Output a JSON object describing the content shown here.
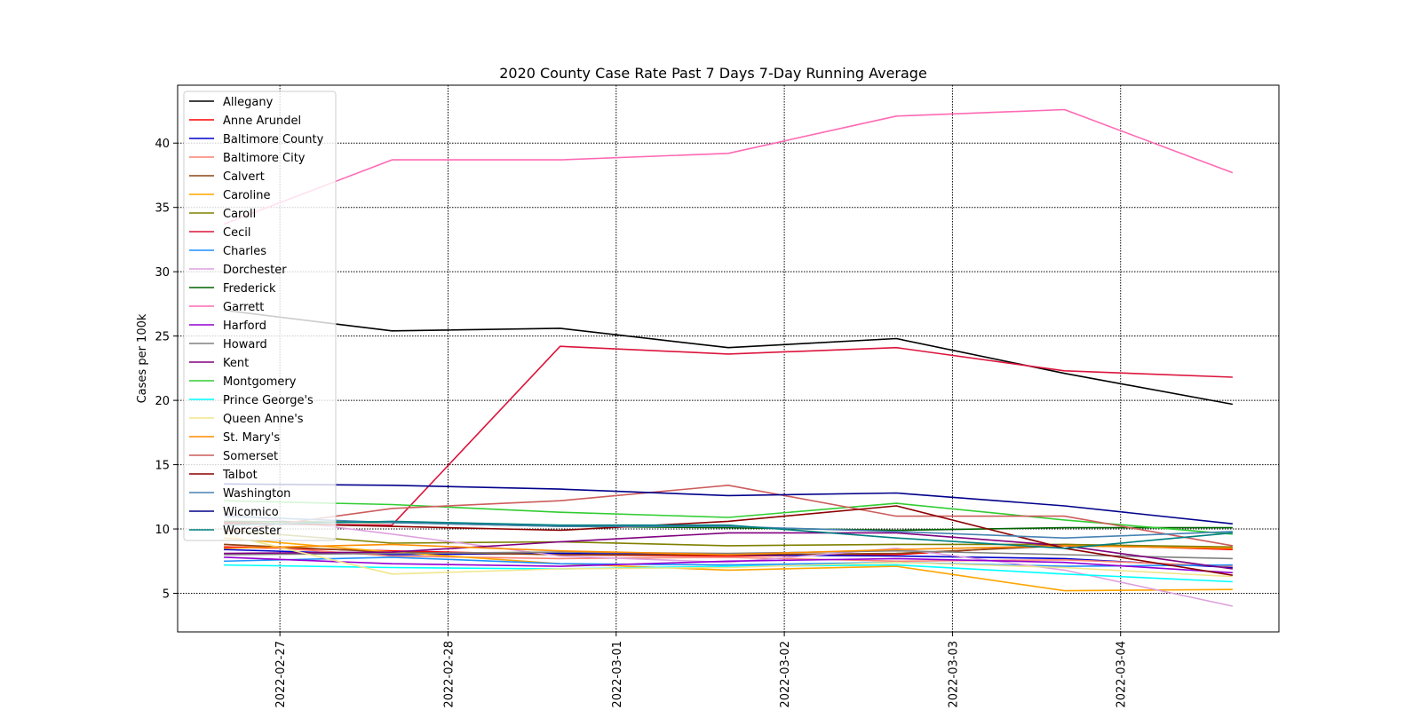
{
  "chart_data": {
    "type": "line",
    "title": "2020 County Case Rate  Past 7 Days 7-Day Running Average",
    "xlabel": "",
    "ylabel": "Cases per 100k",
    "x": [
      "2022-02-26 16:00",
      "2022-02-27 16:00",
      "2022-02-28 16:00",
      "2022-03-01 16:00",
      "2022-03-02 16:00",
      "2022-03-03 16:00",
      "2022-03-04 16:00"
    ],
    "x_ticks": [
      "2022-02-27",
      "2022-02-28",
      "2022-03-01",
      "2022-03-02",
      "2022-03-03",
      "2022-03-04"
    ],
    "xlim": [
      "2022-02-26 09:24",
      "2022-03-04 22:36"
    ],
    "y_ticks": [
      5,
      10,
      15,
      20,
      25,
      30,
      35,
      40
    ],
    "ylim": [
      2.0,
      44.5
    ],
    "grid": true,
    "legend_position": "upper-left",
    "series": [
      {
        "name": "Allegany",
        "color": "#000000",
        "values": [
          27.0,
          25.4,
          25.6,
          24.1,
          24.8,
          22.1,
          19.7
        ]
      },
      {
        "name": "Anne Arundel",
        "color": "#ff0000",
        "values": [
          8.6,
          8.3,
          8.0,
          7.9,
          8.0,
          8.8,
          8.4
        ]
      },
      {
        "name": "Baltimore County",
        "color": "#0000cd",
        "values": [
          8.4,
          8.0,
          8.1,
          8.0,
          7.9,
          7.7,
          7.0
        ]
      },
      {
        "name": "Baltimore City",
        "color": "#fa8072",
        "values": [
          8.8,
          7.9,
          7.7,
          7.8,
          7.5,
          7.6,
          7.1
        ]
      },
      {
        "name": "Calvert",
        "color": "#8b4513",
        "values": [
          8.8,
          8.2,
          8.0,
          8.0,
          8.1,
          8.7,
          8.5
        ]
      },
      {
        "name": "Caroline",
        "color": "#ffa500",
        "values": [
          9.3,
          8.2,
          7.3,
          6.8,
          7.1,
          5.2,
          5.3
        ]
      },
      {
        "name": "Caroll",
        "color": "#808000",
        "values": [
          9.9,
          8.9,
          9.0,
          8.7,
          8.8,
          8.8,
          8.6
        ]
      },
      {
        "name": "Cecil",
        "color": "#dc143c",
        "values": [
          10.4,
          10.3,
          24.2,
          23.6,
          24.1,
          22.3,
          21.8
        ]
      },
      {
        "name": "Charles",
        "color": "#1e90ff",
        "values": [
          7.5,
          7.8,
          7.3,
          7.2,
          7.4,
          7.1,
          7.2
        ]
      },
      {
        "name": "Dorchester",
        "color": "#dda0dd",
        "values": [
          11.2,
          9.6,
          7.9,
          7.4,
          8.5,
          6.8,
          4.0
        ]
      },
      {
        "name": "Frederick",
        "color": "#006400",
        "values": [
          10.6,
          10.5,
          10.2,
          10.1,
          9.9,
          10.1,
          10.1
        ]
      },
      {
        "name": "Garrett",
        "color": "#ff69b4",
        "values": [
          33.7,
          38.7,
          38.7,
          39.2,
          42.1,
          42.6,
          37.7
        ]
      },
      {
        "name": "Harford",
        "color": "#9400d3",
        "values": [
          7.8,
          7.3,
          7.1,
          7.5,
          7.7,
          7.4,
          6.6
        ]
      },
      {
        "name": "Howard",
        "color": "#808080",
        "values": [
          8.0,
          8.1,
          8.2,
          8.1,
          8.3,
          8.0,
          7.7
        ]
      },
      {
        "name": "Kent",
        "color": "#800080",
        "values": [
          8.1,
          8.2,
          9.0,
          9.7,
          9.7,
          8.7,
          6.9
        ]
      },
      {
        "name": "Montgomery",
        "color": "#32cd32",
        "values": [
          12.2,
          11.9,
          11.3,
          10.9,
          12.0,
          10.7,
          9.6
        ]
      },
      {
        "name": "Prince George's",
        "color": "#00ffff",
        "values": [
          7.2,
          7.0,
          6.9,
          7.1,
          7.2,
          6.5,
          5.9
        ]
      },
      {
        "name": "Queen Anne's",
        "color": "#f0e68c",
        "values": [
          9.6,
          6.5,
          6.9,
          7.0,
          7.4,
          7.0,
          6.3
        ]
      },
      {
        "name": "St. Mary's",
        "color": "#ff8c00",
        "values": [
          8.5,
          8.8,
          8.3,
          8.0,
          8.4,
          8.7,
          8.5
        ]
      },
      {
        "name": "Somerset",
        "color": "#cd5c5c",
        "values": [
          9.8,
          11.6,
          12.2,
          13.4,
          11.0,
          11.0,
          8.7
        ]
      },
      {
        "name": "Talbot",
        "color": "#8b0000",
        "values": [
          10.5,
          10.2,
          9.9,
          10.6,
          11.8,
          8.5,
          6.4
        ]
      },
      {
        "name": "Washington",
        "color": "#4682b4",
        "values": [
          11.0,
          10.5,
          10.2,
          10.2,
          9.8,
          9.3,
          9.8
        ]
      },
      {
        "name": "Wicomico",
        "color": "#00008b",
        "values": [
          13.5,
          13.4,
          13.1,
          12.6,
          12.8,
          11.8,
          10.4
        ]
      },
      {
        "name": "Worcester",
        "color": "#008080",
        "values": [
          10.3,
          10.6,
          10.3,
          10.3,
          9.3,
          8.5,
          9.7
        ]
      }
    ]
  }
}
